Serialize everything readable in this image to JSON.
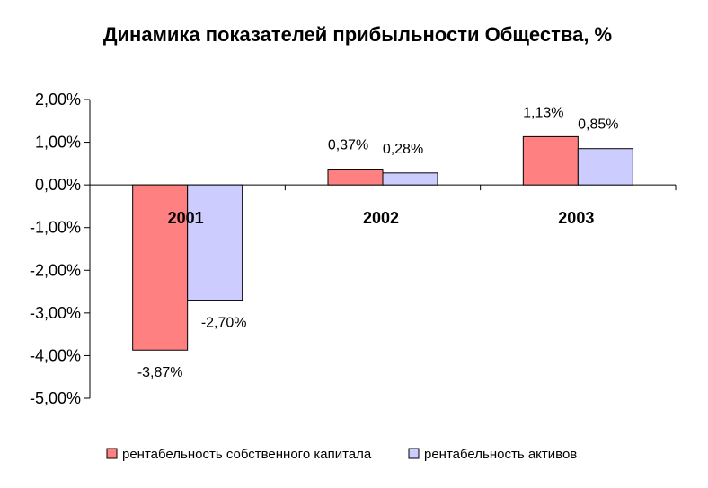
{
  "chart_data": {
    "type": "bar",
    "title": "Динамика показателей прибыльности Общества, %",
    "categories": [
      "2001",
      "2002",
      "2003"
    ],
    "series": [
      {
        "name": "рентабельность собственного капитала",
        "values": [
          -3.87,
          0.37,
          1.13
        ],
        "labels": [
          "-3,87%",
          "0,37%",
          "1,13%"
        ],
        "color": "#FF8080"
      },
      {
        "name": "рентабельность активов",
        "values": [
          -2.7,
          0.28,
          0.85
        ],
        "labels": [
          "-2,70%",
          "0,28%",
          "0,85%"
        ],
        "color": "#CCCCFF"
      }
    ],
    "ylim": [
      -5,
      2
    ],
    "yticks": [
      {
        "value": 2,
        "label": "2,00%"
      },
      {
        "value": 1,
        "label": "1,00%"
      },
      {
        "value": 0,
        "label": "0,00%"
      },
      {
        "value": -1,
        "label": "-1,00%"
      },
      {
        "value": -2,
        "label": "-2,00%"
      },
      {
        "value": -3,
        "label": "-3,00%"
      },
      {
        "value": -4,
        "label": "-4,00%"
      },
      {
        "value": -5,
        "label": "-5,00%"
      }
    ],
    "xlabel": "",
    "ylabel": "",
    "grid": false,
    "legend": "bottom"
  }
}
